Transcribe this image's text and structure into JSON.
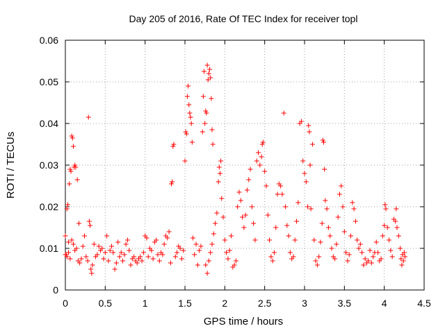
{
  "chart_data": {
    "type": "scatter",
    "title": "Day 205 of 2016, Rate Of TEC Index for receiver topl",
    "xlabel": "GPS time / hours",
    "ylabel": "ROTI / TECUs",
    "xlim": [
      0,
      4.5
    ],
    "ylim": [
      0,
      0.06
    ],
    "x_ticks": [
      0,
      0.5,
      1,
      1.5,
      2,
      2.5,
      3,
      3.5,
      4,
      4.5
    ],
    "x_tick_labels": [
      "0",
      "0.5",
      "1",
      "1.5",
      "2",
      "2.5",
      "3",
      "3.5",
      "4",
      "4.5"
    ],
    "y_ticks": [
      0,
      0.01,
      0.02,
      0.03,
      0.04,
      0.05,
      0.06
    ],
    "y_tick_labels": [
      "0",
      "0.01",
      "0.02",
      "0.03",
      "0.04",
      "0.05",
      "0.06"
    ],
    "grid": true,
    "marker": "+",
    "color": "#ff0000",
    "series": [
      {
        "name": "ROTI",
        "points": [
          [
            0.0,
            0.013
          ],
          [
            0.01,
            0.0085
          ],
          [
            0.02,
            0.0195
          ],
          [
            0.03,
            0.0205
          ],
          [
            0.04,
            0.0115
          ],
          [
            0.05,
            0.0255
          ],
          [
            0.06,
            0.029
          ],
          [
            0.07,
            0.0285
          ],
          [
            0.08,
            0.037
          ],
          [
            0.09,
            0.0365
          ],
          [
            0.1,
            0.0345
          ],
          [
            0.11,
            0.0295
          ],
          [
            0.12,
            0.03
          ],
          [
            0.13,
            0.0295
          ],
          [
            0.15,
            0.0265
          ],
          [
            0.17,
            0.016
          ],
          [
            0.0,
            0.0085
          ],
          [
            0.02,
            0.008
          ],
          [
            0.04,
            0.009
          ],
          [
            0.06,
            0.0075
          ],
          [
            0.08,
            0.012
          ],
          [
            0.1,
            0.011
          ],
          [
            0.12,
            0.0095
          ],
          [
            0.14,
            0.01
          ],
          [
            0.16,
            0.007
          ],
          [
            0.18,
            0.0065
          ],
          [
            0.2,
            0.0075
          ],
          [
            0.22,
            0.0105
          ],
          [
            0.24,
            0.013
          ],
          [
            0.26,
            0.008
          ],
          [
            0.28,
            0.007
          ],
          [
            0.29,
            0.0415
          ],
          [
            0.3,
            0.0165
          ],
          [
            0.31,
            0.0155
          ],
          [
            0.32,
            0.005
          ],
          [
            0.33,
            0.004
          ],
          [
            0.34,
            0.006
          ],
          [
            0.36,
            0.011
          ],
          [
            0.38,
            0.008
          ],
          [
            0.4,
            0.0085
          ],
          [
            0.42,
            0.0105
          ],
          [
            0.44,
            0.0095
          ],
          [
            0.46,
            0.01
          ],
          [
            0.48,
            0.0075
          ],
          [
            0.5,
            0.009
          ],
          [
            0.52,
            0.013
          ],
          [
            0.54,
            0.007
          ],
          [
            0.56,
            0.0095
          ],
          [
            0.58,
            0.0105
          ],
          [
            0.6,
            0.009
          ],
          [
            0.62,
            0.005
          ],
          [
            0.64,
            0.0065
          ],
          [
            0.66,
            0.0115
          ],
          [
            0.68,
            0.008
          ],
          [
            0.7,
            0.009
          ],
          [
            0.72,
            0.007
          ],
          [
            0.74,
            0.0085
          ],
          [
            0.76,
            0.011
          ],
          [
            0.78,
            0.012
          ],
          [
            0.8,
            0.0095
          ],
          [
            0.82,
            0.006
          ],
          [
            0.84,
            0.0075
          ],
          [
            0.86,
            0.008
          ],
          [
            0.88,
            0.007
          ],
          [
            0.9,
            0.0065
          ],
          [
            0.92,
            0.0075
          ],
          [
            0.94,
            0.008
          ],
          [
            0.96,
            0.007
          ],
          [
            0.98,
            0.009
          ],
          [
            1.0,
            0.013
          ],
          [
            1.02,
            0.0125
          ],
          [
            1.04,
            0.008
          ],
          [
            1.06,
            0.01
          ],
          [
            1.08,
            0.0095
          ],
          [
            1.1,
            0.0075
          ],
          [
            1.12,
            0.0115
          ],
          [
            1.14,
            0.012
          ],
          [
            1.16,
            0.0085
          ],
          [
            1.18,
            0.007
          ],
          [
            1.2,
            0.009
          ],
          [
            1.22,
            0.0085
          ],
          [
            1.24,
            0.011
          ],
          [
            1.26,
            0.013
          ],
          [
            1.28,
            0.0125
          ],
          [
            1.3,
            0.014
          ],
          [
            1.32,
            0.0065
          ],
          [
            1.33,
            0.0255
          ],
          [
            1.34,
            0.026
          ],
          [
            1.35,
            0.0345
          ],
          [
            1.36,
            0.035
          ],
          [
            1.38,
            0.008
          ],
          [
            1.4,
            0.009
          ],
          [
            1.42,
            0.0105
          ],
          [
            1.44,
            0.01
          ],
          [
            1.46,
            0.0075
          ],
          [
            1.48,
            0.0095
          ],
          [
            1.5,
            0.031
          ],
          [
            1.51,
            0.038
          ],
          [
            1.52,
            0.0375
          ],
          [
            1.53,
            0.0465
          ],
          [
            1.54,
            0.049
          ],
          [
            1.55,
            0.0445
          ],
          [
            1.56,
            0.0425
          ],
          [
            1.57,
            0.0415
          ],
          [
            1.58,
            0.04
          ],
          [
            1.59,
            0.0355
          ],
          [
            1.6,
            0.0125
          ],
          [
            1.62,
            0.0085
          ],
          [
            1.64,
            0.011
          ],
          [
            1.66,
            0.006
          ],
          [
            1.68,
            0.0095
          ],
          [
            1.7,
            0.0105
          ],
          [
            1.72,
            0.038
          ],
          [
            1.73,
            0.0465
          ],
          [
            1.74,
            0.0525
          ],
          [
            1.75,
            0.04
          ],
          [
            1.76,
            0.043
          ],
          [
            1.77,
            0.0425
          ],
          [
            1.78,
            0.054
          ],
          [
            1.79,
            0.0505
          ],
          [
            1.8,
            0.052
          ],
          [
            1.81,
            0.053
          ],
          [
            1.82,
            0.051
          ],
          [
            1.83,
            0.046
          ],
          [
            1.84,
            0.0385
          ],
          [
            1.85,
            0.035
          ],
          [
            1.76,
            0.006
          ],
          [
            1.78,
            0.004
          ],
          [
            1.8,
            0.007
          ],
          [
            1.82,
            0.009
          ],
          [
            1.84,
            0.011
          ],
          [
            1.86,
            0.0135
          ],
          [
            1.88,
            0.016
          ],
          [
            1.9,
            0.0185
          ],
          [
            1.92,
            0.026
          ],
          [
            1.93,
            0.0295
          ],
          [
            1.94,
            0.028
          ],
          [
            1.95,
            0.031
          ],
          [
            1.96,
            0.022
          ],
          [
            1.98,
            0.0175
          ],
          [
            2.0,
            0.012
          ],
          [
            2.02,
            0.009
          ],
          [
            2.04,
            0.0075
          ],
          [
            2.06,
            0.0095
          ],
          [
            2.08,
            0.013
          ],
          [
            2.1,
            0.0055
          ],
          [
            2.12,
            0.006
          ],
          [
            2.14,
            0.007
          ],
          [
            2.16,
            0.02
          ],
          [
            2.18,
            0.0235
          ],
          [
            2.2,
            0.0215
          ],
          [
            2.22,
            0.0175
          ],
          [
            2.24,
            0.015
          ],
          [
            2.26,
            0.018
          ],
          [
            2.28,
            0.024
          ],
          [
            2.3,
            0.0265
          ],
          [
            2.32,
            0.029
          ],
          [
            2.34,
            0.02
          ],
          [
            2.36,
            0.016
          ],
          [
            2.38,
            0.012
          ],
          [
            2.4,
            0.031
          ],
          [
            2.42,
            0.033
          ],
          [
            2.44,
            0.03
          ],
          [
            2.46,
            0.032
          ],
          [
            2.47,
            0.035
          ],
          [
            2.48,
            0.0355
          ],
          [
            2.5,
            0.0285
          ],
          [
            2.52,
            0.025
          ],
          [
            2.54,
            0.018
          ],
          [
            2.56,
            0.012
          ],
          [
            2.58,
            0.008
          ],
          [
            2.6,
            0.007
          ],
          [
            2.62,
            0.009
          ],
          [
            2.64,
            0.015
          ],
          [
            2.66,
            0.023
          ],
          [
            2.68,
            0.0255
          ],
          [
            2.7,
            0.025
          ],
          [
            2.72,
            0.023
          ],
          [
            2.74,
            0.0425
          ],
          [
            2.76,
            0.02
          ],
          [
            2.78,
            0.0155
          ],
          [
            2.8,
            0.013
          ],
          [
            2.82,
            0.009
          ],
          [
            2.84,
            0.0075
          ],
          [
            2.86,
            0.008
          ],
          [
            2.88,
            0.012
          ],
          [
            2.9,
            0.0165
          ],
          [
            2.92,
            0.021
          ],
          [
            2.94,
            0.04
          ],
          [
            2.96,
            0.0405
          ],
          [
            2.98,
            0.031
          ],
          [
            3.0,
            0.028
          ],
          [
            3.02,
            0.026
          ],
          [
            3.04,
            0.02
          ],
          [
            3.05,
            0.0395
          ],
          [
            3.06,
            0.038
          ],
          [
            3.07,
            0.03
          ],
          [
            3.08,
            0.0195
          ],
          [
            3.1,
            0.035
          ],
          [
            3.12,
            0.012
          ],
          [
            3.14,
            0.007
          ],
          [
            3.16,
            0.006
          ],
          [
            3.18,
            0.008
          ],
          [
            3.2,
            0.0115
          ],
          [
            3.22,
            0.016
          ],
          [
            3.23,
            0.036
          ],
          [
            3.24,
            0.0355
          ],
          [
            3.25,
            0.029
          ],
          [
            3.26,
            0.0215
          ],
          [
            3.28,
            0.0195
          ],
          [
            3.3,
            0.015
          ],
          [
            3.32,
            0.013
          ],
          [
            3.34,
            0.01
          ],
          [
            3.36,
            0.008
          ],
          [
            3.38,
            0.0075
          ],
          [
            3.4,
            0.011
          ],
          [
            3.42,
            0.0175
          ],
          [
            3.44,
            0.023
          ],
          [
            3.46,
            0.025
          ],
          [
            3.48,
            0.02
          ],
          [
            3.5,
            0.014
          ],
          [
            3.52,
            0.009
          ],
          [
            3.54,
            0.007
          ],
          [
            3.56,
            0.0085
          ],
          [
            3.58,
            0.013
          ],
          [
            3.6,
            0.021
          ],
          [
            3.62,
            0.0195
          ],
          [
            3.64,
            0.0165
          ],
          [
            3.66,
            0.012
          ],
          [
            3.68,
            0.01
          ],
          [
            3.7,
            0.011
          ],
          [
            3.72,
            0.009
          ],
          [
            3.74,
            0.006
          ],
          [
            3.76,
            0.0075
          ],
          [
            3.78,
            0.0065
          ],
          [
            3.8,
            0.007
          ],
          [
            3.82,
            0.0095
          ],
          [
            3.84,
            0.0065
          ],
          [
            3.86,
            0.008
          ],
          [
            3.88,
            0.009
          ],
          [
            3.9,
            0.0115
          ],
          [
            3.92,
            0.009
          ],
          [
            3.94,
            0.007
          ],
          [
            3.96,
            0.0075
          ],
          [
            3.98,
            0.013
          ],
          [
            4.0,
            0.0155
          ],
          [
            4.01,
            0.0205
          ],
          [
            4.02,
            0.0195
          ],
          [
            4.04,
            0.015
          ],
          [
            4.06,
            0.012
          ],
          [
            4.08,
            0.0095
          ],
          [
            4.1,
            0.008
          ],
          [
            4.12,
            0.017
          ],
          [
            4.14,
            0.0165
          ],
          [
            4.15,
            0.0195
          ],
          [
            4.16,
            0.015
          ],
          [
            4.18,
            0.013
          ],
          [
            4.2,
            0.01
          ],
          [
            4.21,
            0.0075
          ],
          [
            4.22,
            0.006
          ],
          [
            4.23,
            0.0085
          ],
          [
            4.24,
            0.007
          ],
          [
            4.25,
            0.009
          ],
          [
            4.26,
            0.008
          ]
        ]
      }
    ]
  }
}
